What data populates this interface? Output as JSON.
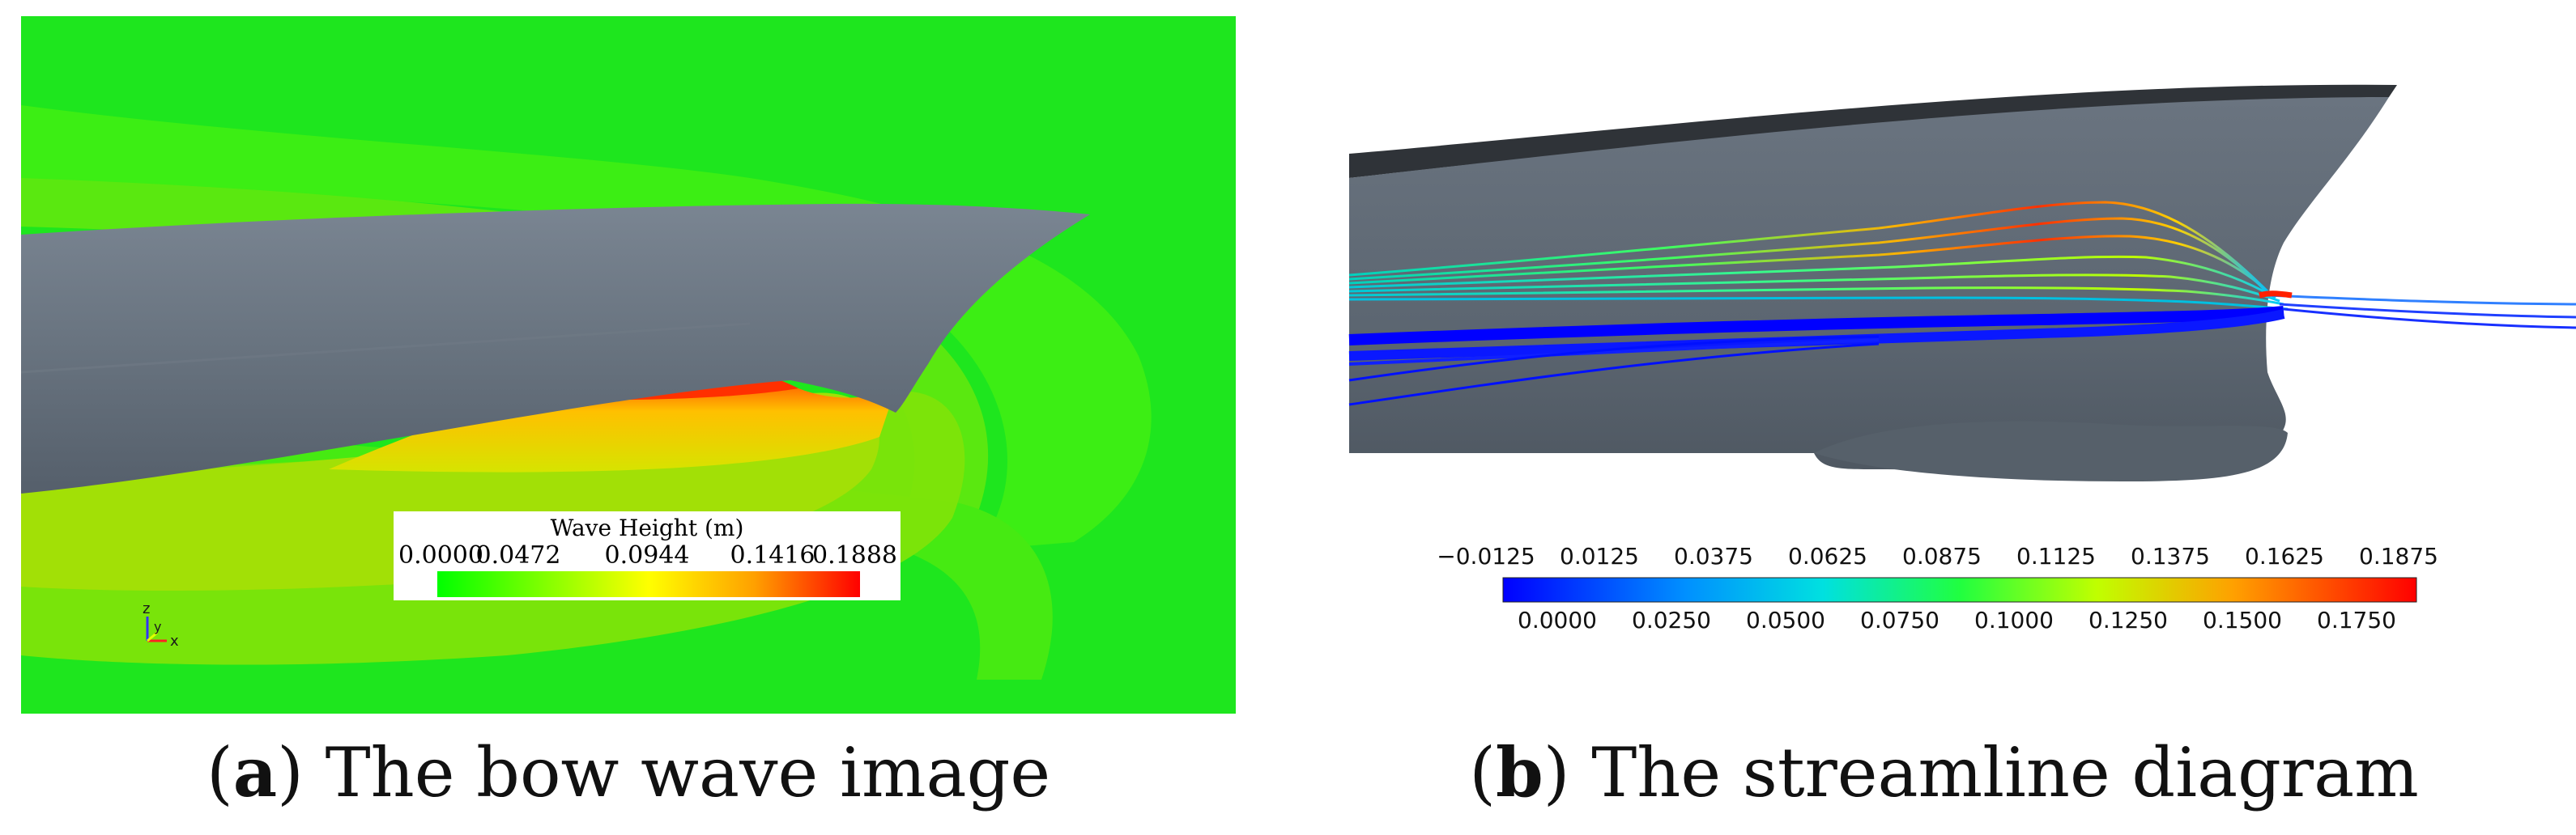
{
  "panel_a": {
    "caption_letter": "a",
    "caption_text": "The bow wave image",
    "colorbar": {
      "title": "Wave Height (m)",
      "min": 0.0,
      "max": 0.1888,
      "ticks": [
        "0.0000",
        "0.0472",
        "0.0944",
        "0.1416",
        "0.1888"
      ],
      "colors": [
        "#00ff00",
        "#80ff00",
        "#ffff00",
        "#ffa000",
        "#ff0000"
      ]
    },
    "axes_triad": {
      "z": "z",
      "y": "y",
      "x": "x"
    },
    "water_color": "#1ee61e",
    "hull_color": "#636d79"
  },
  "panel_b": {
    "caption_letter": "b",
    "caption_text": "The streamline diagram",
    "colorbar": {
      "min": -0.0125,
      "max": 0.1875,
      "top_ticks": [
        "−0.0125",
        "0.0125",
        "0.0375",
        "0.0625",
        "0.0875",
        "0.1125",
        "0.1375",
        "0.1625",
        "0.1875"
      ],
      "bottom_ticks": [
        "0.0000",
        "0.0250",
        "0.0500",
        "0.0750",
        "0.1000",
        "0.1250",
        "0.1500",
        "0.1750"
      ],
      "colors": [
        "#0000ff",
        "#00d0ff",
        "#00ff80",
        "#c0ff00",
        "#ffa000",
        "#ff0000"
      ]
    },
    "hull_color": "#5f6873"
  }
}
